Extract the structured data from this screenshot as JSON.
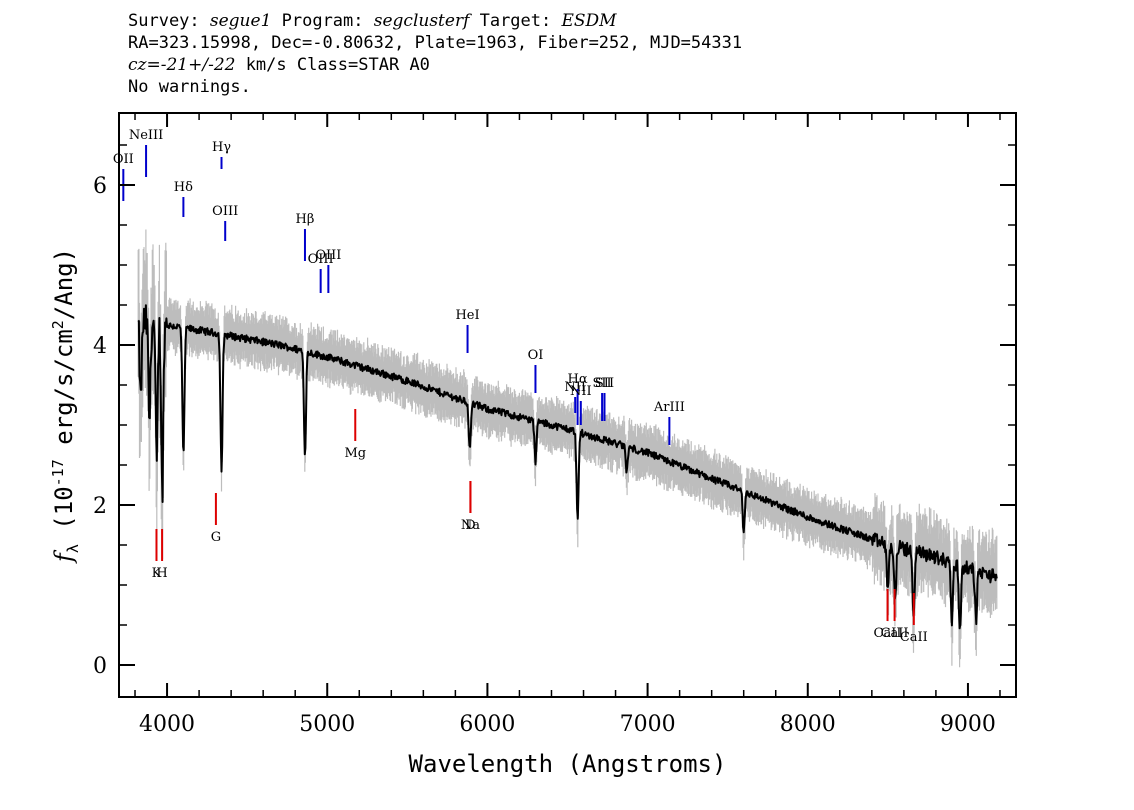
{
  "header": {
    "line1": {
      "survey_label": "Survey: ",
      "survey": "segue1",
      "program_label": " Program: ",
      "program": "segclusterf",
      "target_label": " Target: ",
      "target": "ESDM"
    },
    "line2": "RA=323.15998, Dec=-0.80632, Plate=1963, Fiber=252, MJD=54331",
    "line3": {
      "cz": "cz=-21+/-22",
      "rest": " km/s Class=STAR A0"
    },
    "line4": "No warnings."
  },
  "chart_data": {
    "type": "line",
    "xlabel": "Wavelength (Angstroms)",
    "ylabel_parts": [
      "f",
      "λ",
      " (10",
      "-17",
      " erg/s/cm",
      "2",
      "/Ang)"
    ],
    "xlim": [
      3700,
      9300
    ],
    "ylim": [
      -0.4,
      6.9
    ],
    "x_ticks": [
      4000,
      5000,
      6000,
      7000,
      8000,
      9000
    ],
    "y_ticks": [
      0,
      2,
      4,
      6
    ],
    "x_tick_labels": [
      "4000",
      "5000",
      "6000",
      "7000",
      "8000",
      "9000"
    ],
    "y_tick_labels": [
      "0",
      "2",
      "4",
      "6"
    ],
    "grid": false,
    "series": [
      {
        "role": "flux",
        "color": "#000000",
        "continuum": [
          [
            3820,
            4.3
          ],
          [
            4000,
            4.25
          ],
          [
            4300,
            4.15
          ],
          [
            4700,
            4.0
          ],
          [
            5000,
            3.85
          ],
          [
            5500,
            3.55
          ],
          [
            6000,
            3.2
          ],
          [
            6500,
            2.95
          ],
          [
            7000,
            2.65
          ],
          [
            7500,
            2.25
          ],
          [
            8000,
            1.85
          ],
          [
            8500,
            1.5
          ],
          [
            8800,
            1.35
          ],
          [
            9000,
            1.2
          ],
          [
            9180,
            1.1
          ]
        ],
        "absorption": [
          [
            3835,
            1.0
          ],
          [
            3890,
            1.2
          ],
          [
            3935,
            1.8
          ],
          [
            3970,
            2.1
          ],
          [
            4102,
            1.6
          ],
          [
            4340,
            1.7
          ],
          [
            4861,
            1.3
          ],
          [
            5890,
            0.6
          ],
          [
            6300,
            0.5
          ],
          [
            6563,
            1.1
          ],
          [
            6870,
            0.3
          ],
          [
            7600,
            0.5
          ],
          [
            8500,
            0.6
          ],
          [
            8545,
            0.7
          ],
          [
            8660,
            0.8
          ],
          [
            8900,
            0.7
          ],
          [
            8950,
            0.8
          ],
          [
            9050,
            0.6
          ]
        ]
      },
      {
        "role": "error",
        "color": "#bdbdbd"
      }
    ],
    "emission_lines": [
      {
        "label": "OII",
        "x": 3727,
        "tick": [
          5.8,
          6.2
        ]
      },
      {
        "label": "NeIII",
        "x": 3869,
        "tick": [
          6.1,
          6.5
        ]
      },
      {
        "label": "Hδ",
        "x": 4102,
        "tick": [
          5.6,
          5.85
        ]
      },
      {
        "label": "Hγ",
        "x": 4340,
        "tick": [
          6.2,
          6.35
        ]
      },
      {
        "label": "OIII",
        "x": 4363,
        "tick": [
          5.3,
          5.55
        ]
      },
      {
        "label": "Hβ",
        "x": 4861,
        "tick": [
          5.05,
          5.45
        ]
      },
      {
        "label": "OIII",
        "x": 4959,
        "tick": [
          4.65,
          4.95
        ]
      },
      {
        "label": "OIII",
        "x": 5007,
        "tick": [
          4.65,
          5.0
        ]
      },
      {
        "label": "HeI",
        "x": 5876,
        "tick": [
          3.9,
          4.25
        ]
      },
      {
        "label": "OI",
        "x": 6300,
        "tick": [
          3.4,
          3.75
        ]
      },
      {
        "label": "NII",
        "x": 6548,
        "tick": [
          3.15,
          3.35
        ]
      },
      {
        "label": "Hα",
        "x": 6563,
        "tick": [
          3.0,
          3.45
        ]
      },
      {
        "label": "NII",
        "x": 6583,
        "tick": [
          3.0,
          3.3
        ]
      },
      {
        "label": "SII",
        "x": 6716,
        "tick": [
          3.05,
          3.4
        ]
      },
      {
        "label": "SII",
        "x": 6731,
        "tick": [
          3.05,
          3.4
        ]
      },
      {
        "label": "ArIII",
        "x": 7136,
        "tick": [
          2.75,
          3.1
        ]
      }
    ],
    "absorption_lines": [
      {
        "label": "K",
        "x": 3934,
        "tick": [
          1.3,
          1.7
        ]
      },
      {
        "label": "H",
        "x": 3969,
        "tick": [
          1.3,
          1.7
        ]
      },
      {
        "label": "G",
        "x": 4305,
        "tick": [
          1.75,
          2.15
        ]
      },
      {
        "label": "Mg",
        "x": 5175,
        "tick": [
          2.8,
          3.2
        ]
      },
      {
        "label": "Na",
        "x": 5894,
        "tick": [
          1.9,
          2.3
        ]
      },
      {
        "label": "D",
        "x": 5894,
        "tick": [
          1.9,
          2.3
        ]
      },
      {
        "label": "CaII",
        "x": 8498,
        "tick": [
          0.55,
          0.95
        ]
      },
      {
        "label": "CaII",
        "x": 8542,
        "tick": [
          0.55,
          0.95
        ]
      },
      {
        "label": "CaII",
        "x": 8662,
        "tick": [
          0.5,
          0.9
        ]
      }
    ],
    "colors": {
      "emission": "#0000cc",
      "absorption": "#dd0000",
      "flux": "#000000",
      "error": "#bdbdbd"
    }
  }
}
